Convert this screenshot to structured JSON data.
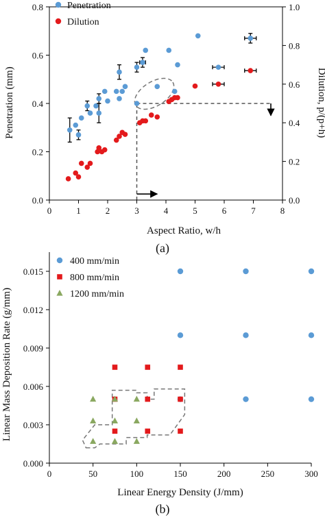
{
  "chart_data": [
    {
      "type": "scatter",
      "panel_label": "(a)",
      "xlabel": "Aspect Ratio, w/h",
      "ylabel": "Penetration (mm)",
      "y2label": "Dilution, p/(p+h)",
      "xlim": [
        0,
        8
      ],
      "ylim": [
        0,
        0.8
      ],
      "y2lim": [
        0,
        1.0
      ],
      "x_ticks": [
        "0",
        "1",
        "2",
        "3",
        "4",
        "5",
        "6",
        "7",
        "8"
      ],
      "y_ticks": [
        "0.0",
        "0.2",
        "0.4",
        "0.6",
        "0.8"
      ],
      "y2_ticks": [
        "0.0",
        "0.2",
        "0.4",
        "0.6",
        "0.8",
        "1.0"
      ],
      "grid": false,
      "legend_position": "top-left",
      "series": [
        {
          "name": "Penetration",
          "axis": "left",
          "color": "#5b9bd5",
          "points": [
            {
              "x": 0.7,
              "y": 0.29,
              "yerr": 0.05
            },
            {
              "x": 0.9,
              "y": 0.31
            },
            {
              "x": 1.0,
              "y": 0.27,
              "yerr": 0.02
            },
            {
              "x": 1.1,
              "y": 0.34
            },
            {
              "x": 1.3,
              "y": 0.39,
              "yerr": 0.02
            },
            {
              "x": 1.4,
              "y": 0.36
            },
            {
              "x": 1.6,
              "y": 0.39
            },
            {
              "x": 1.7,
              "y": 0.36,
              "yerr": 0.04
            },
            {
              "x": 1.7,
              "y": 0.42,
              "yerr": 0.02
            },
            {
              "x": 1.9,
              "y": 0.45
            },
            {
              "x": 2.0,
              "y": 0.41
            },
            {
              "x": 2.3,
              "y": 0.45
            },
            {
              "x": 2.4,
              "y": 0.53,
              "yerr": 0.03
            },
            {
              "x": 2.4,
              "y": 0.42
            },
            {
              "x": 2.5,
              "y": 0.45
            },
            {
              "x": 2.6,
              "y": 0.47
            },
            {
              "x": 3.0,
              "y": 0.55,
              "yerr": 0.02
            },
            {
              "x": 3.0,
              "y": 0.4
            },
            {
              "x": 3.2,
              "y": 0.57,
              "xerr": 0.1,
              "yerr": 0.02
            },
            {
              "x": 3.3,
              "y": 0.62
            },
            {
              "x": 3.7,
              "y": 0.47
            },
            {
              "x": 4.1,
              "y": 0.62
            },
            {
              "x": 4.3,
              "y": 0.45
            },
            {
              "x": 4.4,
              "y": 0.56
            },
            {
              "x": 5.1,
              "y": 0.68
            },
            {
              "x": 5.8,
              "y": 0.55,
              "xerr": 0.2
            },
            {
              "x": 6.9,
              "y": 0.67,
              "xerr": 0.2,
              "yerr": 0.02
            }
          ]
        },
        {
          "name": "Dilution",
          "axis": "right",
          "color": "#e31a1c",
          "points": [
            {
              "x": 0.65,
              "y": 0.11
            },
            {
              "x": 0.9,
              "y": 0.14
            },
            {
              "x": 1.0,
              "y": 0.12
            },
            {
              "x": 1.1,
              "y": 0.19
            },
            {
              "x": 1.3,
              "y": 0.17
            },
            {
              "x": 1.4,
              "y": 0.19
            },
            {
              "x": 1.65,
              "y": 0.25
            },
            {
              "x": 1.7,
              "y": 0.27
            },
            {
              "x": 1.8,
              "y": 0.25
            },
            {
              "x": 1.9,
              "y": 0.26
            },
            {
              "x": 2.3,
              "y": 0.31
            },
            {
              "x": 2.4,
              "y": 0.33
            },
            {
              "x": 2.5,
              "y": 0.35
            },
            {
              "x": 2.6,
              "y": 0.34
            },
            {
              "x": 3.1,
              "y": 0.4
            },
            {
              "x": 3.2,
              "y": 0.41
            },
            {
              "x": 3.3,
              "y": 0.41
            },
            {
              "x": 3.5,
              "y": 0.44
            },
            {
              "x": 3.7,
              "y": 0.43
            },
            {
              "x": 4.1,
              "y": 0.51
            },
            {
              "x": 4.2,
              "y": 0.52
            },
            {
              "x": 4.3,
              "y": 0.53
            },
            {
              "x": 4.4,
              "y": 0.53
            },
            {
              "x": 5.0,
              "y": 0.59
            },
            {
              "x": 5.8,
              "y": 0.6,
              "xerr": 0.2
            },
            {
              "x": 6.9,
              "y": 0.67,
              "xerr": 0.2
            }
          ]
        }
      ],
      "annotations": {
        "ellipse": {
          "cx": 3.6,
          "cy": 0.44,
          "rx": 0.75,
          "ry": 0.05,
          "angle": -32
        },
        "vertical_guide": {
          "x": 3.0,
          "y_from": 0.0,
          "y_to": 0.4
        },
        "horizontal_guide": {
          "x_from": 3.0,
          "x_to": 7.6,
          "y": 0.4
        },
        "arrow_right": {
          "x_from": 3.0,
          "x_to": 3.7,
          "y": 0.025
        },
        "arrow_down": {
          "x": 7.6,
          "y_from": 0.4,
          "y_to": 0.35
        }
      }
    },
    {
      "type": "scatter",
      "panel_label": "(b)",
      "xlabel": "Linear Energy Density (J/mm)",
      "ylabel": "Linear Mass Deposition Rate (g/mm)",
      "xlim": [
        0,
        300
      ],
      "ylim": [
        0,
        0.0165
      ],
      "x_ticks": [
        "0",
        "50",
        "100",
        "150",
        "200",
        "250",
        "300"
      ],
      "y_ticks": [
        "0.000",
        "0.003",
        "0.006",
        "0.009",
        "0.012",
        "0.015"
      ],
      "grid": false,
      "legend_position": "top-left",
      "series": [
        {
          "name": "400 mm/min",
          "marker": "circle",
          "color": "#5b9bd5",
          "points": [
            {
              "x": 150,
              "y": 0.015
            },
            {
              "x": 225,
              "y": 0.015
            },
            {
              "x": 300,
              "y": 0.015
            },
            {
              "x": 150,
              "y": 0.01
            },
            {
              "x": 225,
              "y": 0.01
            },
            {
              "x": 300,
              "y": 0.01
            },
            {
              "x": 150,
              "y": 0.005
            },
            {
              "x": 225,
              "y": 0.005
            },
            {
              "x": 300,
              "y": 0.005
            }
          ]
        },
        {
          "name": "800 mm/min",
          "marker": "square",
          "color": "#e31a1c",
          "points": [
            {
              "x": 75,
              "y": 0.0075
            },
            {
              "x": 112.5,
              "y": 0.0075
            },
            {
              "x": 150,
              "y": 0.0075
            },
            {
              "x": 75,
              "y": 0.005
            },
            {
              "x": 112.5,
              "y": 0.005
            },
            {
              "x": 150,
              "y": 0.005
            },
            {
              "x": 75,
              "y": 0.0025
            },
            {
              "x": 112.5,
              "y": 0.0025
            },
            {
              "x": 150,
              "y": 0.0025
            }
          ]
        },
        {
          "name": "1200 mm/min",
          "marker": "triangle",
          "color": "#8aa860",
          "points": [
            {
              "x": 50,
              "y": 0.005
            },
            {
              "x": 75,
              "y": 0.005
            },
            {
              "x": 100,
              "y": 0.005
            },
            {
              "x": 50,
              "y": 0.0033
            },
            {
              "x": 75,
              "y": 0.0033
            },
            {
              "x": 100,
              "y": 0.0033
            },
            {
              "x": 50,
              "y": 0.0017
            },
            {
              "x": 75,
              "y": 0.0017
            },
            {
              "x": 100,
              "y": 0.0017
            }
          ]
        }
      ],
      "annotations": {
        "dashed_region": [
          [
            42,
            0.0012
          ],
          [
            52,
            0.0012
          ],
          [
            58,
            0.0015
          ],
          [
            88,
            0.0015
          ],
          [
            88,
            0.002
          ],
          [
            112,
            0.002
          ],
          [
            112,
            0.0022
          ],
          [
            138,
            0.0022
          ],
          [
            155,
            0.0038
          ],
          [
            155,
            0.0058
          ],
          [
            120,
            0.0058
          ],
          [
            120,
            0.005
          ],
          [
            112,
            0.005
          ],
          [
            112,
            0.0055
          ],
          [
            100,
            0.0055
          ],
          [
            100,
            0.0057
          ],
          [
            72,
            0.0057
          ],
          [
            72,
            0.003
          ],
          [
            52,
            0.003
          ],
          [
            38,
            0.0018
          ]
        ]
      }
    }
  ]
}
